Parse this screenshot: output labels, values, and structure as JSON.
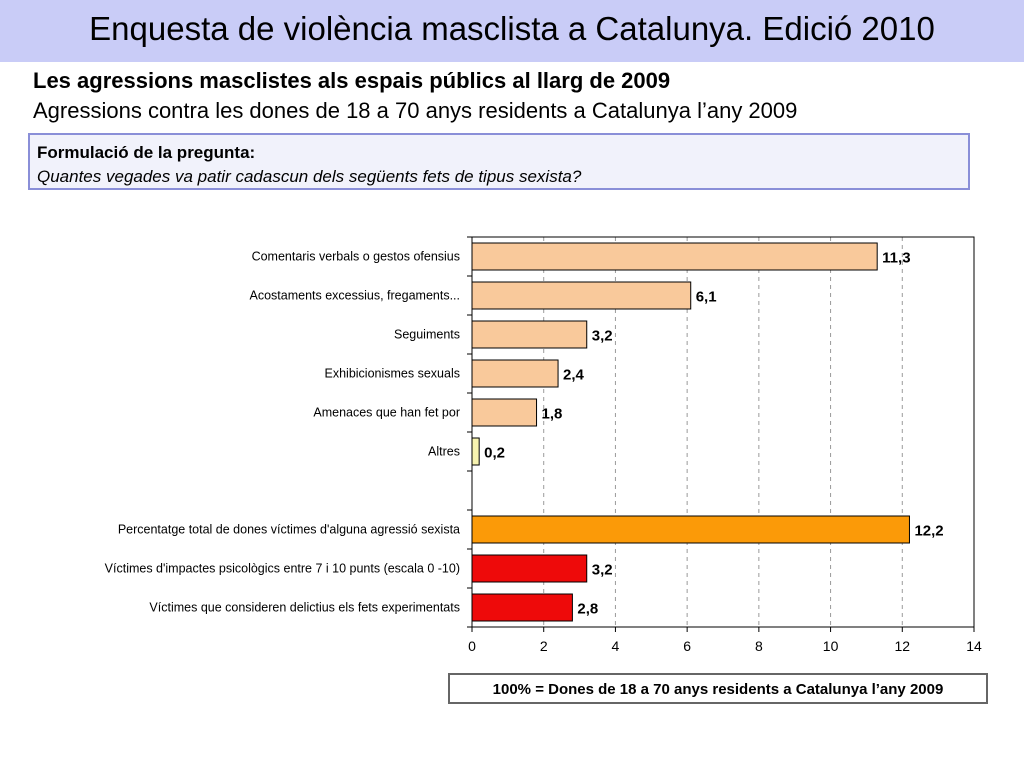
{
  "header": {
    "title": "Enquesta de violència masclista a Catalunya. Edició 2010"
  },
  "subtitle": "Les agressions masclistes als espais públics al llarg de 2009",
  "subtitle2": "Agressions contra les dones de 18 a 70 anys residents a Catalunya l’any 2009",
  "question": {
    "label": "Formulació de la pregunta:",
    "text": "Quantes vegades va patir cadascun dels següents fets de tipus sexista?"
  },
  "footnote": "100% = Dones de 18 a 70 anys residents a Catalunya l’any 2009",
  "chart_data": {
    "type": "bar",
    "orientation": "horizontal",
    "categories": [
      "Comentaris verbals o gestos ofensius",
      "Acostaments excessius, fregaments...",
      "Seguiments",
      "Exhibicionismes sexuals",
      "Amenaces que han fet por",
      "Altres",
      "",
      "Percentatge total de dones víctimes d'alguna agressió sexista",
      "Víctimes d'impactes psicològics entre 7 i 10 punts (escala 0 -10)",
      "Víctimes que consideren delictius els fets experimentats"
    ],
    "values": [
      11.3,
      6.1,
      3.2,
      2.4,
      1.8,
      0.2,
      null,
      12.2,
      3.2,
      2.8
    ],
    "value_labels": [
      "11,3",
      "6,1",
      "3,2",
      "2,4",
      "1,8",
      "0,2",
      "",
      "12,2",
      "3,2",
      "2,8"
    ],
    "colors": [
      "#f9c99b",
      "#f9c99b",
      "#f9c99b",
      "#f9c99b",
      "#f9c99b",
      "#f7f3b0",
      "",
      "#fb9a08",
      "#ee0a0a",
      "#ee0a0a"
    ],
    "xlim": [
      0,
      14
    ],
    "xticks": [
      0,
      2,
      4,
      6,
      8,
      10,
      12,
      14
    ],
    "grid": "vertical dashed",
    "title": "",
    "xlabel": "",
    "ylabel": ""
  }
}
